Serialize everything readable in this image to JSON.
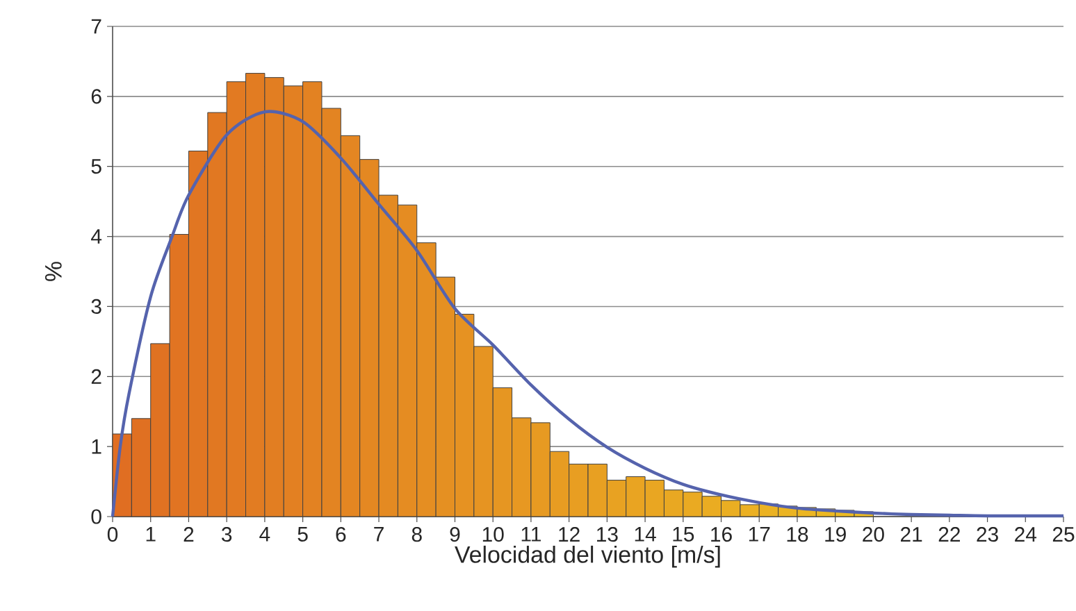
{
  "chart_data": {
    "type": "histogram",
    "xlabel": "Velocidad del viento [m/s]",
    "ylabel": "%",
    "bins": [
      0,
      0.5,
      1,
      1.5,
      2,
      2.5,
      3,
      3.5,
      4,
      4.5,
      5,
      5.5,
      6,
      6.5,
      7,
      7.5,
      8,
      8.5,
      9,
      9.5,
      10,
      10.5,
      11,
      11.5,
      12,
      12.5,
      13,
      13.5,
      14,
      14.5,
      15,
      15.5,
      16,
      16.5,
      17,
      17.5,
      18,
      18.5,
      19,
      19.5,
      20,
      20.5,
      21,
      21.5,
      22,
      22.5,
      23,
      23.5,
      24,
      24.5,
      25
    ],
    "values": [
      1.18,
      1.4,
      2.47,
      4.03,
      5.22,
      5.77,
      6.21,
      6.33,
      6.27,
      6.15,
      6.21,
      5.83,
      5.44,
      5.1,
      4.59,
      4.45,
      3.91,
      3.42,
      2.89,
      2.43,
      1.84,
      1.41,
      1.34,
      0.93,
      0.75,
      0.75,
      0.52,
      0.57,
      0.52,
      0.38,
      0.35,
      0.29,
      0.23,
      0.17,
      0.18,
      0.15,
      0.13,
      0.11,
      0.09,
      0.07,
      null,
      null,
      null,
      null,
      null,
      0.02,
      0.02,
      0.02,
      0.01,
      null
    ],
    "colors": [
      "#e06e22",
      "#e07022",
      "#e07222",
      "#e17422",
      "#e17622",
      "#e17822",
      "#e27a22",
      "#e27c22",
      "#e27e22",
      "#e38022",
      "#e38222",
      "#e38422",
      "#e48622",
      "#e48822",
      "#e48a22",
      "#e58c22",
      "#e58e22",
      "#e59022",
      "#e69222",
      "#e69422",
      "#e69622",
      "#e79822",
      "#e79a22",
      "#e79c22",
      "#e89e22",
      "#e8a022",
      "#e8a222",
      "#e9a422",
      "#e9a622",
      "#e9a822",
      "#eaaa22",
      "#eaac22",
      "#eaae22",
      "#ebb022",
      "#ebb222",
      "#ebb422",
      "#ecb622",
      "#ecb822",
      "#ecba22",
      "#edbc22",
      "#edbe22",
      "#edc022",
      "#eec222",
      "#eec422",
      "#eec622",
      "#efc822",
      "#efca22",
      "#efcc22",
      "#f0ce22",
      "#f0d022"
    ],
    "series": [
      {
        "type": "line",
        "color": "#5563ad",
        "x": [
          0,
          0.2,
          0.43,
          1,
          1.55,
          2,
          3,
          4,
          5,
          6,
          7,
          8,
          9,
          10,
          11,
          12,
          13,
          14,
          15,
          16,
          17,
          18,
          19,
          20,
          21,
          22,
          23,
          25
        ],
        "values": [
          0,
          1.0,
          1.75,
          3.14,
          3.98,
          4.59,
          5.45,
          5.78,
          5.64,
          5.12,
          4.46,
          3.8,
          2.97,
          2.45,
          1.88,
          1.39,
          0.99,
          0.69,
          0.46,
          0.31,
          0.2,
          0.12,
          0.08,
          0.05,
          0.03,
          0.02,
          0.01,
          0.01
        ]
      }
    ],
    "xlim": [
      0,
      25
    ],
    "ylim": [
      0,
      7
    ],
    "xticks": [
      0,
      1,
      2,
      3,
      4,
      5,
      6,
      7,
      8,
      9,
      10,
      11,
      12,
      13,
      14,
      15,
      16,
      17,
      18,
      19,
      20,
      21,
      22,
      23,
      24,
      25
    ],
    "yticks": [
      0,
      1,
      2,
      3,
      4,
      5,
      6,
      7
    ],
    "grid": "y",
    "line_style": "solid"
  }
}
